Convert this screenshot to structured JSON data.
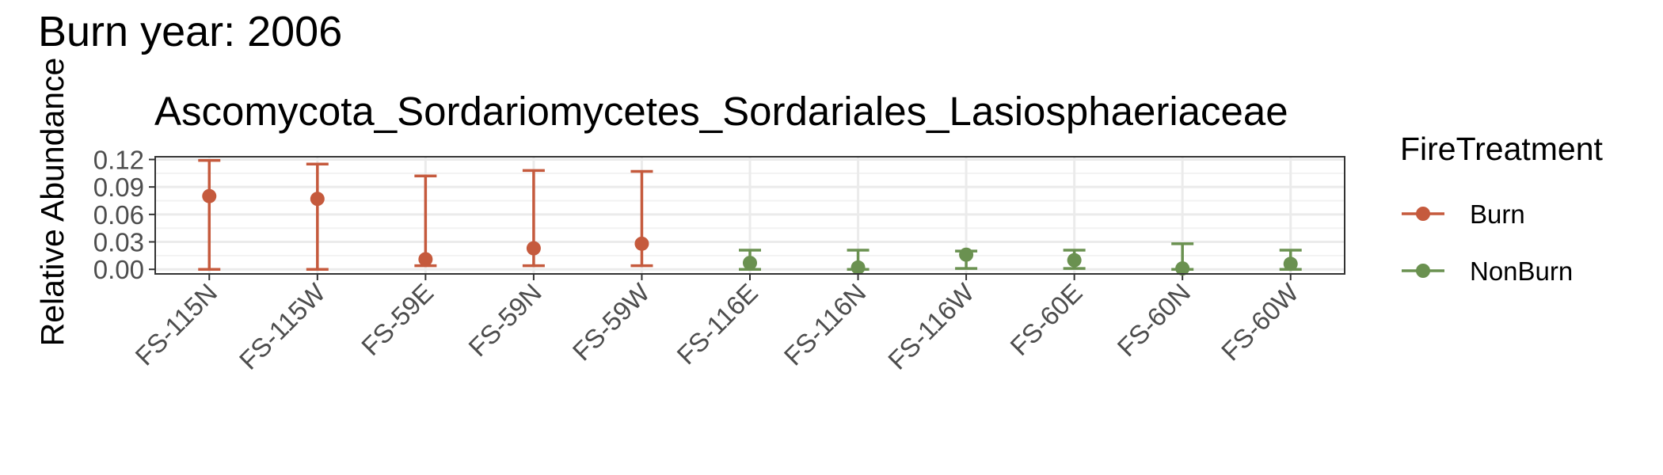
{
  "page_title": "Burn year: 2006",
  "chart_data": {
    "type": "scatter",
    "title": "Ascomycota_Sordariomycetes_Sordariales_Lasiosphaeriaceae",
    "xlabel": "",
    "ylabel": "Relative Abundance",
    "ylim": [
      -0.005,
      0.123
    ],
    "yticks": [
      0.0,
      0.03,
      0.06,
      0.09,
      0.12
    ],
    "ytick_labels": [
      "0.00",
      "0.03",
      "0.06",
      "0.09",
      "0.12"
    ],
    "categories": [
      "FS-115N",
      "FS-115W",
      "FS-59E",
      "FS-59N",
      "FS-59W",
      "FS-116E",
      "FS-116N",
      "FS-116W",
      "FS-60E",
      "FS-60N",
      "FS-60W"
    ],
    "grid": true,
    "series": [
      {
        "name": "Burn",
        "color": "#c55a3d",
        "points": [
          {
            "x": "FS-115N",
            "y": 0.08,
            "ymin": 0.0,
            "ymax": 0.119
          },
          {
            "x": "FS-115W",
            "y": 0.077,
            "ymin": 0.0,
            "ymax": 0.115
          },
          {
            "x": "FS-59E",
            "y": 0.011,
            "ymin": 0.004,
            "ymax": 0.102
          },
          {
            "x": "FS-59N",
            "y": 0.023,
            "ymin": 0.004,
            "ymax": 0.108
          },
          {
            "x": "FS-59W",
            "y": 0.028,
            "ymin": 0.004,
            "ymax": 0.107
          }
        ]
      },
      {
        "name": "NonBurn",
        "color": "#6a9150",
        "points": [
          {
            "x": "FS-116E",
            "y": 0.007,
            "ymin": 0.0,
            "ymax": 0.021
          },
          {
            "x": "FS-116N",
            "y": 0.002,
            "ymin": 0.0,
            "ymax": 0.021
          },
          {
            "x": "FS-116W",
            "y": 0.016,
            "ymin": 0.001,
            "ymax": 0.02
          },
          {
            "x": "FS-60E",
            "y": 0.01,
            "ymin": 0.001,
            "ymax": 0.021
          },
          {
            "x": "FS-60N",
            "y": 0.001,
            "ymin": 0.0,
            "ymax": 0.028
          },
          {
            "x": "FS-60W",
            "y": 0.006,
            "ymin": 0.0,
            "ymax": 0.021
          }
        ]
      }
    ],
    "legend": {
      "title": "FireTreatment",
      "position": "right",
      "entries": [
        "Burn",
        "NonBurn"
      ]
    }
  }
}
